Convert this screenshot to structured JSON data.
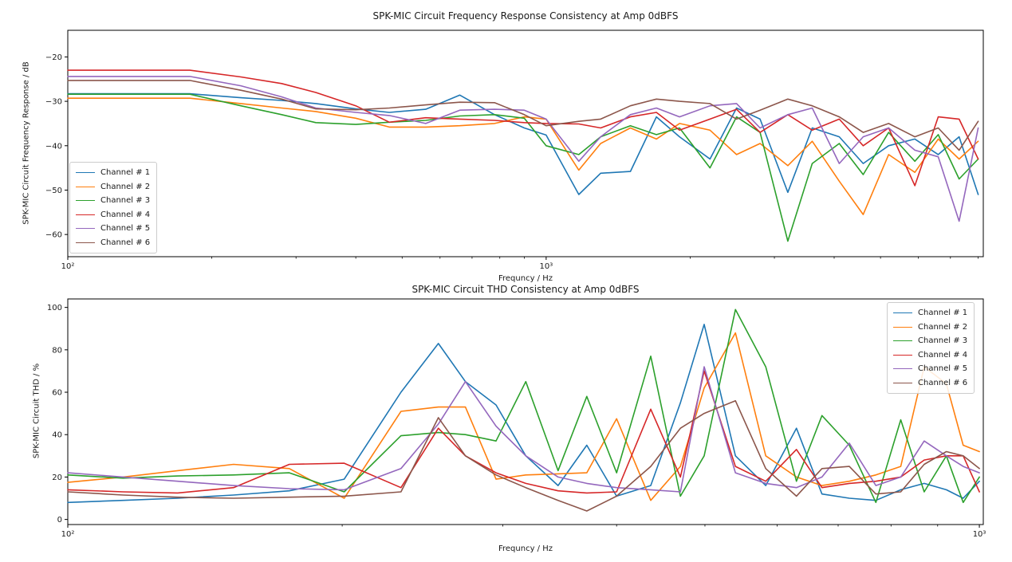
{
  "figure": {
    "background": "#ffffff"
  },
  "channels": [
    {
      "label": "Channel # 1",
      "color": "#1f77b4"
    },
    {
      "label": "Channel # 2",
      "color": "#ff7f0e"
    },
    {
      "label": "Channel # 3",
      "color": "#2ca02c"
    },
    {
      "label": "Channel # 4",
      "color": "#d62728"
    },
    {
      "label": "Channel # 5",
      "color": "#9467bd"
    },
    {
      "label": "Channel # 6",
      "color": "#8c564b"
    }
  ],
  "chart_data": [
    {
      "id": "frequency-response",
      "type": "line",
      "title": "SPK-MIC Circuit Frequency Response Consistency at Amp 0dBFS",
      "xlabel": "Frequncy / Hz",
      "ylabel": "SPK-MIC Circuit Frequency Response / dB",
      "xscale": "log",
      "xlim": [
        100,
        8200
      ],
      "ylim": [
        -65,
        -14
      ],
      "yticks": [
        -20,
        -30,
        -40,
        -50,
        -60
      ],
      "xticks": [
        {
          "value": 100,
          "label": "10²"
        },
        {
          "value": 1000,
          "label": "10³"
        }
      ],
      "grid": false,
      "legend_position": "center-left",
      "x": [
        100,
        180,
        230,
        280,
        330,
        400,
        470,
        560,
        660,
        780,
        900,
        1000,
        1170,
        1300,
        1500,
        1700,
        1900,
        2200,
        2500,
        2800,
        3200,
        3600,
        4100,
        4600,
        5200,
        5900,
        6600,
        7300,
        8000
      ],
      "series": [
        {
          "name": "Channel # 1",
          "color": "#1f77b4",
          "values": [
            -28.3,
            -28.3,
            -29.2,
            -29.8,
            -30.5,
            -31.7,
            -32.5,
            -31.8,
            -28.6,
            -33.0,
            -36.0,
            -37.6,
            -51.0,
            -46.2,
            -45.8,
            -33.5,
            -38.0,
            -43.0,
            -31.5,
            -34.0,
            -50.5,
            -36.0,
            -38.0,
            -44.0,
            -40.0,
            -38.5,
            -42.0,
            -38.0,
            -51.0
          ]
        },
        {
          "name": "Channel # 2",
          "color": "#ff7f0e",
          "values": [
            -29.3,
            -29.3,
            -30.5,
            -31.5,
            -32.3,
            -33.8,
            -35.8,
            -35.8,
            -35.5,
            -35.0,
            -33.5,
            -34.0,
            -45.5,
            -39.5,
            -36.0,
            -38.5,
            -35.0,
            -36.5,
            -42.0,
            -39.5,
            -44.5,
            -39.0,
            -48.0,
            -55.5,
            -42.0,
            -46.0,
            -38.5,
            -43.0,
            -39.0
          ]
        },
        {
          "name": "Channel # 3",
          "color": "#2ca02c",
          "values": [
            -28.4,
            -28.4,
            -31.0,
            -33.0,
            -34.8,
            -35.2,
            -34.7,
            -34.3,
            -33.3,
            -33.0,
            -33.8,
            -40.0,
            -42.0,
            -38.0,
            -35.5,
            -37.5,
            -36.0,
            -45.0,
            -33.5,
            -37.0,
            -61.5,
            -44.0,
            -39.5,
            -46.5,
            -37.0,
            -43.5,
            -37.5,
            -47.5,
            -43.0
          ]
        },
        {
          "name": "Channel # 4",
          "color": "#d62728",
          "values": [
            -23.0,
            -23.0,
            -24.5,
            -26.0,
            -28.0,
            -31.0,
            -34.7,
            -33.7,
            -34.0,
            -34.3,
            -34.8,
            -35.0,
            -35.1,
            -36.0,
            -33.5,
            -32.5,
            -36.5,
            -34.0,
            -31.8,
            -37.0,
            -33.0,
            -36.5,
            -34.0,
            -40.0,
            -36.0,
            -49.0,
            -33.5,
            -34.0,
            -43.0
          ]
        },
        {
          "name": "Channel # 5",
          "color": "#9467bd",
          "values": [
            -24.4,
            -24.4,
            -26.5,
            -29.0,
            -31.5,
            -32.5,
            -33.2,
            -35.0,
            -32.0,
            -31.8,
            -32.0,
            -34.0,
            -43.5,
            -38.0,
            -33.0,
            -31.5,
            -33.5,
            -31.0,
            -30.5,
            -36.0,
            -33.0,
            -31.5,
            -44.0,
            -38.0,
            -36.0,
            -41.0,
            -42.5,
            -57.0,
            -36.0
          ]
        },
        {
          "name": "Channel # 6",
          "color": "#8c564b",
          "values": [
            -25.3,
            -25.3,
            -27.5,
            -29.5,
            -31.7,
            -31.9,
            -31.5,
            -30.8,
            -30.2,
            -30.3,
            -33.0,
            -35.5,
            -34.5,
            -34.0,
            -31.0,
            -29.5,
            -30.0,
            -30.5,
            -34.0,
            -32.0,
            -29.5,
            -31.0,
            -33.5,
            -37.0,
            -35.0,
            -38.0,
            -36.0,
            -41.0,
            -34.5
          ]
        }
      ]
    },
    {
      "id": "thd",
      "type": "line",
      "title": "SPK-MIC Circuit THD Consistency at Amp 0dBFS",
      "xlabel": "Frequncy / Hz",
      "ylabel": "SPK-MIC Circuit THD / %",
      "xscale": "log",
      "xlim": [
        100,
        1010
      ],
      "ylim": [
        -2.4,
        104
      ],
      "yticks": [
        0,
        20,
        40,
        60,
        80,
        100
      ],
      "xticks": [
        {
          "value": 100,
          "label": "10²"
        },
        {
          "value": 1000,
          "label": "10³"
        }
      ],
      "grid": false,
      "legend_position": "top-right",
      "x": [
        100,
        115,
        132,
        152,
        175,
        201,
        232,
        255,
        273,
        295,
        318,
        345,
        371,
        400,
        436,
        470,
        499,
        540,
        583,
        630,
        672,
        720,
        770,
        820,
        870,
        920,
        960,
        1000
      ],
      "series": [
        {
          "name": "Channel # 1",
          "color": "#1f77b4",
          "values": [
            8,
            9,
            10,
            11.5,
            13.5,
            19,
            60,
            83,
            65,
            54,
            30,
            16,
            35,
            11,
            16,
            55,
            92,
            30,
            16,
            43,
            12,
            10,
            9,
            14,
            17,
            14,
            10,
            18
          ]
        },
        {
          "name": "Channel # 2",
          "color": "#ff7f0e",
          "values": [
            17.5,
            20,
            23,
            26,
            24,
            10,
            51,
            53,
            53,
            19,
            21,
            21.5,
            22,
            47.5,
            9,
            25,
            62,
            88,
            30,
            20,
            16,
            18,
            21,
            25,
            72,
            64,
            35,
            32
          ]
        },
        {
          "name": "Channel # 3",
          "color": "#2ca02c",
          "values": [
            21,
            19.5,
            20.5,
            21,
            22,
            13,
            39.5,
            41,
            40,
            37,
            65,
            23,
            58,
            22,
            77,
            11,
            30,
            99,
            72,
            18,
            49,
            35,
            8,
            47,
            13,
            30,
            8,
            20
          ]
        },
        {
          "name": "Channel # 4",
          "color": "#d62728",
          "values": [
            14,
            13,
            12.5,
            15,
            26,
            26.5,
            15,
            43,
            30,
            22,
            17,
            13.5,
            12.5,
            13,
            52,
            20,
            70,
            25,
            18,
            33,
            15,
            17,
            18,
            20,
            28,
            30,
            30,
            13
          ]
        },
        {
          "name": "Channel # 5",
          "color": "#9467bd",
          "values": [
            22,
            20,
            18,
            16,
            14.5,
            14,
            24,
            45,
            65,
            44,
            30,
            20,
            17,
            15,
            14,
            13,
            72,
            22,
            17,
            15,
            20,
            36,
            16,
            20,
            37,
            30,
            25,
            22
          ]
        },
        {
          "name": "Channel # 6",
          "color": "#8c564b",
          "values": [
            13,
            11.5,
            10.5,
            10,
            10.5,
            11,
            13,
            48,
            30,
            21,
            15,
            9,
            4,
            11,
            25,
            43,
            50,
            56,
            24,
            11,
            24,
            25,
            12,
            13,
            26,
            32,
            30,
            24
          ]
        }
      ]
    }
  ]
}
